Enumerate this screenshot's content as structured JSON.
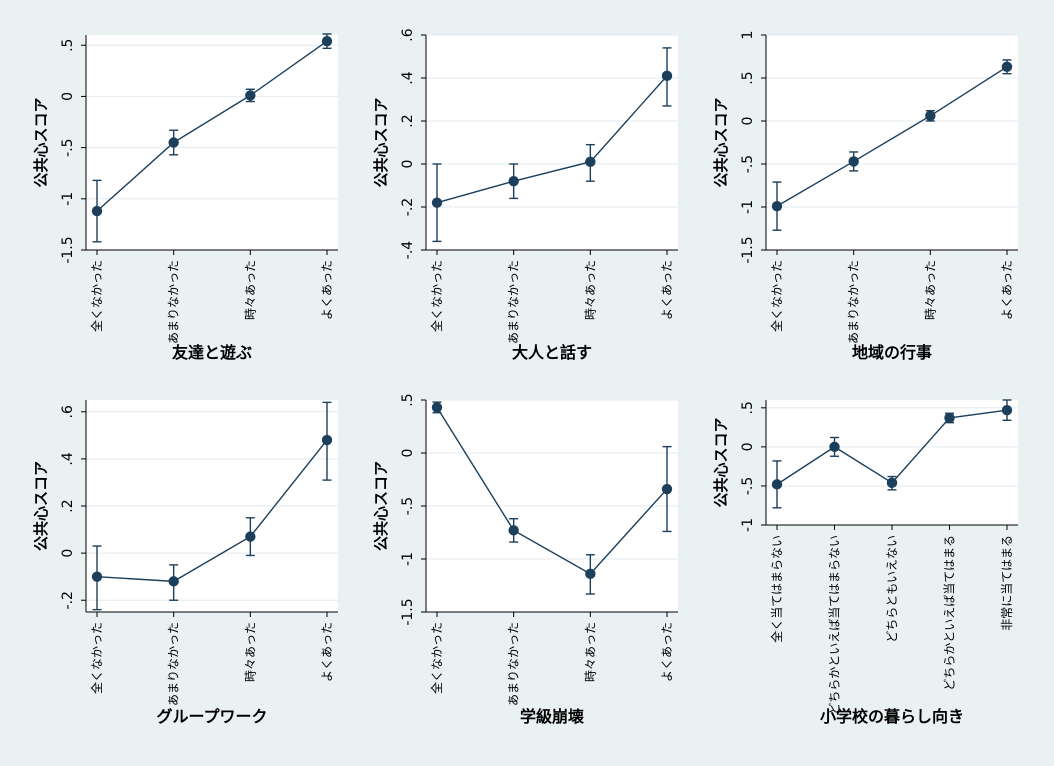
{
  "style": {
    "background": "#eaf1f3",
    "plot_background": "#ffffff",
    "gridline": "#e4ebee",
    "series_color": "#1c3f5c"
  },
  "chart_data": [
    {
      "type": "line",
      "xlabel": "友達と遊ぶ",
      "ylabel": "公共心スコア",
      "categories": [
        "全くなかった",
        "あまりなかった",
        "時々あった",
        "よくあった"
      ],
      "series": [
        {
          "values": [
            -1.12,
            -0.45,
            0.01,
            0.54
          ],
          "ci_low": [
            -1.42,
            -0.57,
            -0.05,
            0.47
          ],
          "ci_high": [
            -0.82,
            -0.33,
            0.07,
            0.61
          ]
        }
      ],
      "ylim": [
        -1.5,
        0.6
      ],
      "yticks": [
        -1.5,
        -1,
        -0.5,
        0,
        0.5
      ],
      "ytick_labels": [
        "-1.5",
        "-1",
        "-.5",
        "0",
        ".5"
      ],
      "grid": true,
      "error_bars": true
    },
    {
      "type": "line",
      "xlabel": "大人と話す",
      "ylabel": "公共心スコア",
      "categories": [
        "全くなかった",
        "あまりなかった",
        "時々あった",
        "よくあった"
      ],
      "series": [
        {
          "values": [
            -0.18,
            -0.08,
            0.01,
            0.41
          ],
          "ci_low": [
            -0.36,
            -0.16,
            -0.08,
            0.27
          ],
          "ci_high": [
            0.0,
            0.0,
            0.09,
            0.54
          ]
        }
      ],
      "ylim": [
        -0.4,
        0.6
      ],
      "yticks": [
        -0.4,
        -0.2,
        0,
        0.2,
        0.4,
        0.6
      ],
      "ytick_labels": [
        "-.4",
        "-.2",
        "0",
        ".2",
        ".4",
        ".6"
      ],
      "grid": true,
      "error_bars": true
    },
    {
      "type": "line",
      "xlabel": "地域の行事",
      "ylabel": "公共心スコア",
      "categories": [
        "全くなかった",
        "あまりなかった",
        "時々あった",
        "よくあった"
      ],
      "series": [
        {
          "values": [
            -0.99,
            -0.47,
            0.06,
            0.63
          ],
          "ci_low": [
            -1.27,
            -0.58,
            0.0,
            0.55
          ],
          "ci_high": [
            -0.71,
            -0.36,
            0.12,
            0.71
          ]
        }
      ],
      "ylim": [
        -1.5,
        1.0
      ],
      "yticks": [
        -1.5,
        -1,
        -0.5,
        0,
        0.5,
        1
      ],
      "ytick_labels": [
        "-1.5",
        "-1",
        "-.5",
        "0",
        ".5",
        "1"
      ],
      "grid": true,
      "error_bars": true
    },
    {
      "type": "line",
      "xlabel": "グループワーク",
      "ylabel": "公共心スコア",
      "categories": [
        "全くなかった",
        "あまりなかった",
        "時々あった",
        "よくあった"
      ],
      "series": [
        {
          "values": [
            -0.1,
            -0.12,
            0.07,
            0.48
          ],
          "ci_low": [
            -0.24,
            -0.2,
            -0.01,
            0.31
          ],
          "ci_high": [
            0.03,
            -0.05,
            0.15,
            0.64
          ]
        }
      ],
      "ylim": [
        -0.25,
        0.65
      ],
      "yticks": [
        -0.2,
        0,
        0.2,
        0.4,
        0.6
      ],
      "ytick_labels": [
        "-.2",
        "0",
        ".2",
        ".4",
        ".6"
      ],
      "grid": true,
      "error_bars": true
    },
    {
      "type": "line",
      "xlabel": "学級崩壊",
      "ylabel": "公共心スコア",
      "categories": [
        "全くなかった",
        "あまりなかった",
        "時々あった",
        "よくあった"
      ],
      "series": [
        {
          "values": [
            0.43,
            -0.73,
            -1.14,
            -0.34
          ],
          "ci_low": [
            0.38,
            -0.84,
            -1.33,
            -0.74
          ],
          "ci_high": [
            0.48,
            -0.62,
            -0.96,
            0.06
          ]
        }
      ],
      "ylim": [
        -1.5,
        0.5
      ],
      "yticks": [
        -1.5,
        -1,
        -0.5,
        0,
        0.5
      ],
      "ytick_labels": [
        "-1.5",
        "-1",
        "-.5",
        "0",
        ".5"
      ],
      "grid": true,
      "error_bars": true
    },
    {
      "type": "line",
      "xlabel": "小学校の暮らし向き",
      "ylabel": "公共心スコア",
      "categories": [
        "全く当てはまらない",
        "どちらかといえば当てはまらない",
        "どちらともいえない",
        "どちらかといえば当てはまる",
        "非常に当てはまる"
      ],
      "series": [
        {
          "values": [
            -0.48,
            0.0,
            -0.46,
            0.37,
            0.47
          ],
          "ci_low": [
            -0.78,
            -0.12,
            -0.55,
            0.31,
            0.34
          ],
          "ci_high": [
            -0.18,
            0.12,
            -0.38,
            0.43,
            0.6
          ]
        }
      ],
      "ylim": [
        -1.0,
        0.6
      ],
      "yticks": [
        -1,
        -0.5,
        0,
        0.5
      ],
      "ytick_labels": [
        "-1",
        "-.5",
        "0",
        ".5"
      ],
      "grid": true,
      "error_bars": true
    }
  ]
}
